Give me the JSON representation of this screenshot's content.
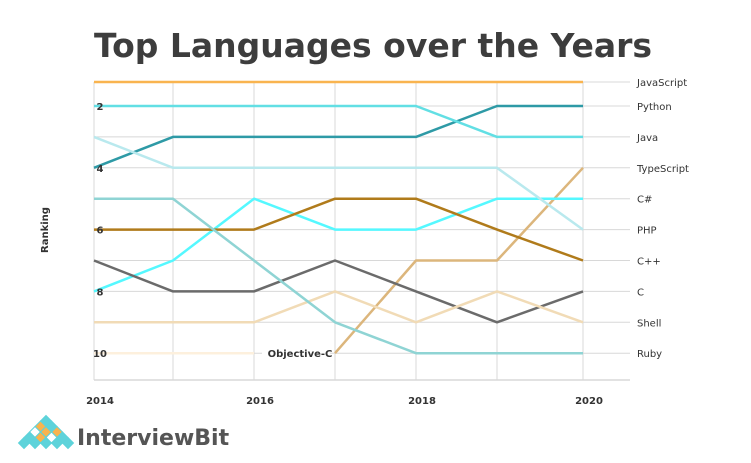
{
  "chart_data": {
    "type": "line",
    "title": "Top Languages over the Years",
    "xlabel": "",
    "ylabel": "Ranking",
    "x": [
      2014,
      2015,
      2016,
      2017,
      2018,
      2019,
      2020
    ],
    "x_ticks": [
      "2014",
      "2016",
      "2018",
      "2020"
    ],
    "y_ticks": [
      "2",
      "4",
      "6",
      "8",
      "10"
    ],
    "ylim": [
      1,
      10
    ],
    "y_inverted": true,
    "grid": true,
    "series": [
      {
        "name": "JavaScript",
        "color": "#f9b44f",
        "values": [
          1,
          1,
          1,
          1,
          1,
          1,
          1
        ]
      },
      {
        "name": "Python",
        "color": "#2e9aa6",
        "values": [
          4,
          3,
          3,
          3,
          3,
          2,
          2
        ]
      },
      {
        "name": "Java",
        "color": "#62dfe4",
        "values": [
          2,
          2,
          2,
          2,
          2,
          3,
          3
        ]
      },
      {
        "name": "TypeScript",
        "color": "#dcb67c",
        "values": [
          null,
          null,
          null,
          10,
          7,
          7,
          4
        ]
      },
      {
        "name": "C#",
        "color": "#55f8ff",
        "values": [
          8,
          7,
          5,
          6,
          6,
          5,
          5
        ]
      },
      {
        "name": "PHP",
        "color": "#b9e9ee",
        "values": [
          3,
          4,
          4,
          4,
          4,
          4,
          6
        ]
      },
      {
        "name": "C++",
        "color": "#b07b1b",
        "values": [
          6,
          6,
          6,
          5,
          5,
          6,
          7
        ]
      },
      {
        "name": "C",
        "color": "#6b6b6b",
        "values": [
          7,
          8,
          8,
          7,
          8,
          9,
          8
        ]
      },
      {
        "name": "Shell",
        "color": "#f1dbb6",
        "values": [
          9,
          9,
          9,
          8,
          9,
          8,
          9
        ]
      },
      {
        "name": "Ruby",
        "color": "#8fd4d4",
        "values": [
          5,
          5,
          7,
          9,
          10,
          10,
          10
        ]
      },
      {
        "name": "Objective-C",
        "color": "#fdf0dd",
        "values": [
          10,
          10,
          10,
          null,
          null,
          null,
          null
        ]
      }
    ],
    "right_labels": [
      "JavaScript",
      "Python",
      "Java",
      "TypeScript",
      "C#",
      "PHP",
      "C++",
      "C",
      "Shell",
      "Ruby"
    ],
    "annotation": "Objective-C"
  },
  "brand": {
    "name": "InterviewBit"
  }
}
